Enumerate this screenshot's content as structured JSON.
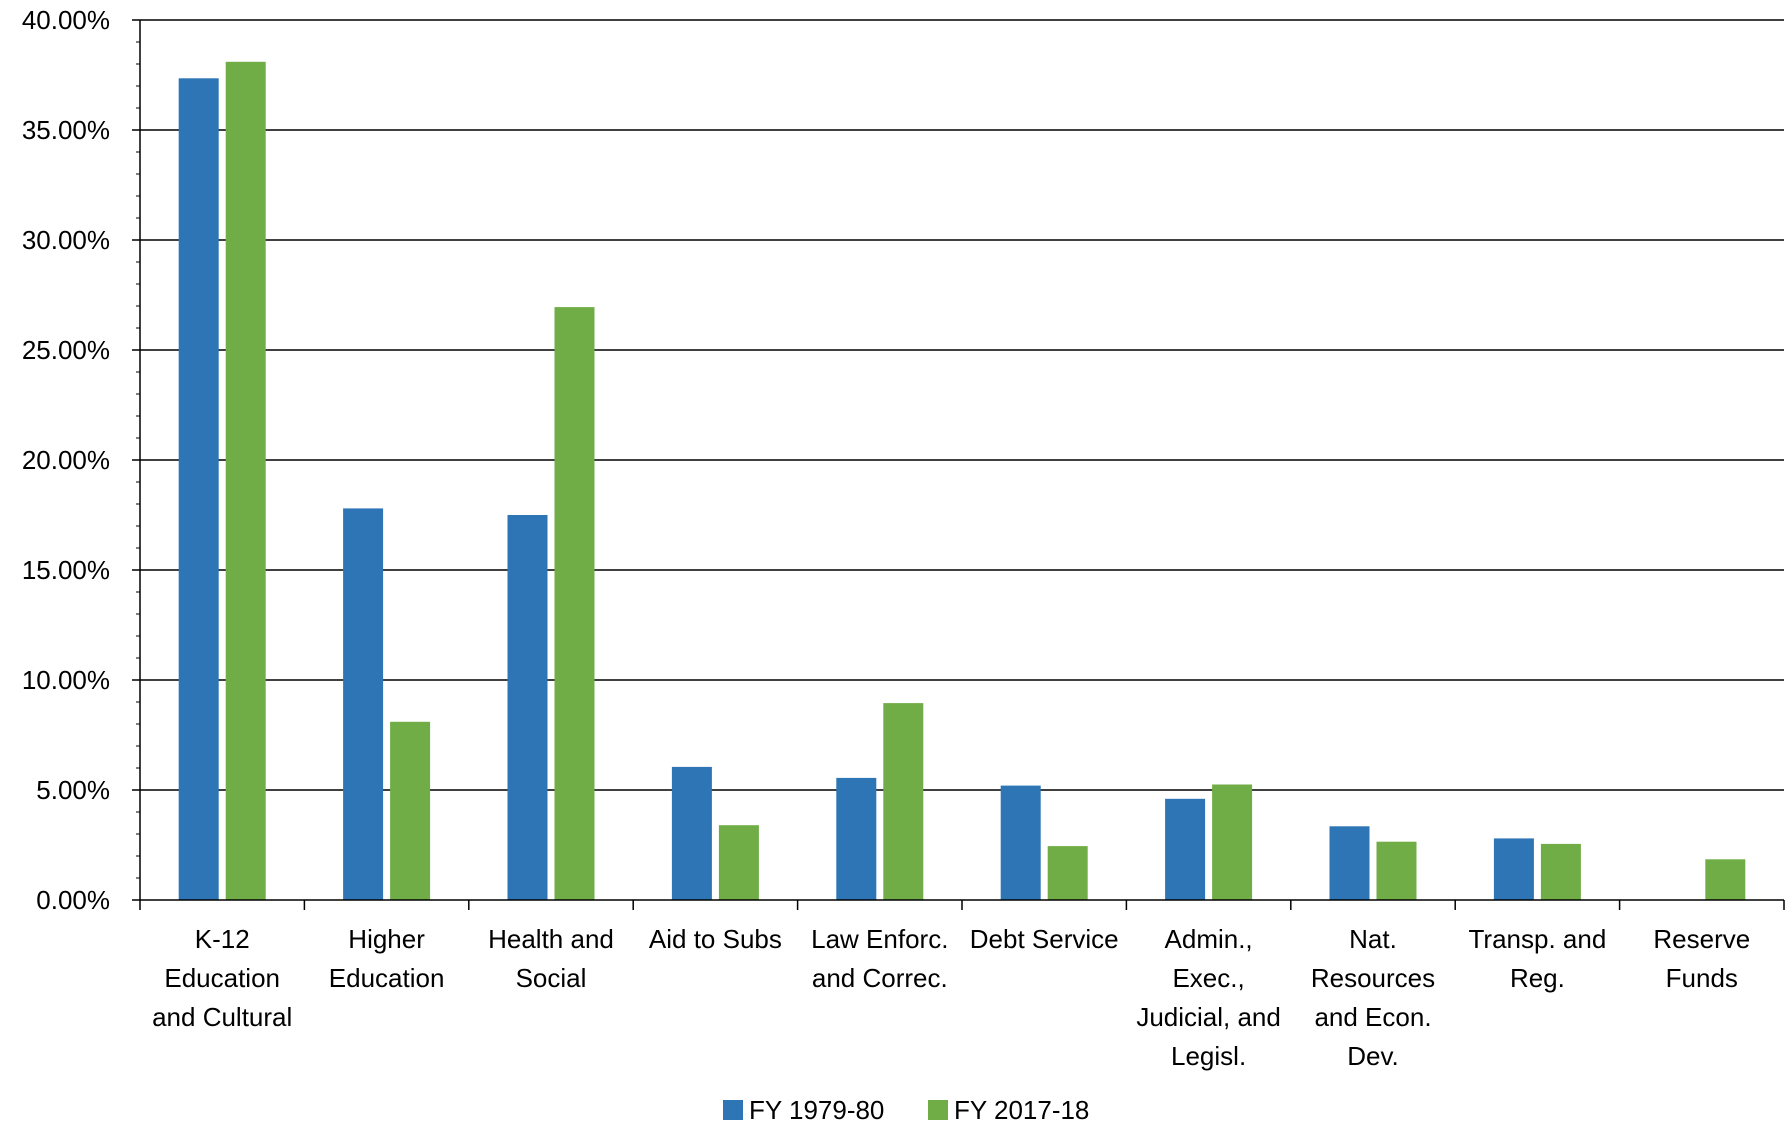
{
  "chart_data": {
    "type": "bar",
    "title": "",
    "xlabel": "",
    "ylabel": "",
    "ylim": [
      0,
      40
    ],
    "y_tick_values": [
      0,
      5,
      10,
      15,
      20,
      25,
      30,
      35,
      40
    ],
    "y_tick_labels": [
      "0.00%",
      "5.00%",
      "10.00%",
      "15.00%",
      "20.00%",
      "25.00%",
      "30.00%",
      "35.00%",
      "40.00%"
    ],
    "grid": true,
    "legend_position": "bottom-center",
    "categories": [
      [
        "K-12",
        "Education",
        "and Cultural"
      ],
      [
        "Higher",
        "Education"
      ],
      [
        "Health and",
        "Social"
      ],
      [
        "Aid to Subs"
      ],
      [
        "Law Enforc.",
        "and Correc."
      ],
      [
        "Debt Service"
      ],
      [
        "Admin.,",
        "Exec.,",
        "Judicial, and",
        "Legisl."
      ],
      [
        "Nat.",
        "Resources",
        "and Econ.",
        "Dev."
      ],
      [
        "Transp. and",
        "Reg."
      ],
      [
        "Reserve",
        "Funds"
      ]
    ],
    "series": [
      {
        "name": "FY 1979-80",
        "color": "#2E75B6",
        "values": [
          37.35,
          17.8,
          17.5,
          6.05,
          5.55,
          5.2,
          4.6,
          3.35,
          2.8,
          0
        ]
      },
      {
        "name": "FY 2017-18",
        "color": "#70AD47",
        "values": [
          38.1,
          8.1,
          26.95,
          3.4,
          8.95,
          2.45,
          5.25,
          2.65,
          2.55,
          1.85
        ]
      }
    ]
  }
}
